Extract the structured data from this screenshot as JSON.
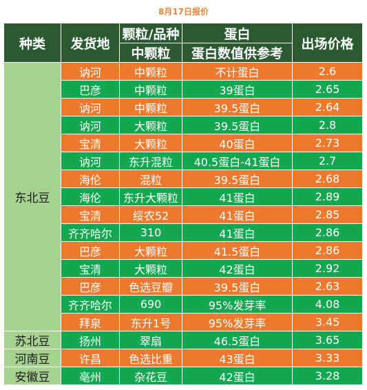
{
  "title": "8月17日报价",
  "headers": {
    "type": "种类",
    "origin": "发货地",
    "grain_variety": "颗粒/品种",
    "grain_sub": "中颗粒",
    "protein": "蛋白",
    "protein_sub": "蛋白数值供参考",
    "price": "出场价格"
  },
  "groups": [
    {
      "category": "东北豆",
      "rows": [
        {
          "origin": "讷河",
          "variety": "中颗粒",
          "protein": "不计蛋白",
          "price": "2.6",
          "color": "orange"
        },
        {
          "origin": "巴彦",
          "variety": "中颗粒",
          "protein": "39蛋白",
          "price": "2.65",
          "color": "green"
        },
        {
          "origin": "讷河",
          "variety": "中颗粒",
          "protein": "39.5蛋白",
          "price": "2.64",
          "color": "orange"
        },
        {
          "origin": "讷河",
          "variety": "大颗粒",
          "protein": "39.5蛋白",
          "price": "2.8",
          "color": "green"
        },
        {
          "origin": "宝清",
          "variety": "大颗粒",
          "protein": "40蛋白",
          "price": "2.73",
          "color": "orange"
        },
        {
          "origin": "讷河",
          "variety": "东升混粒",
          "protein": "40.5蛋白-41蛋白",
          "price": "2.7",
          "color": "green"
        },
        {
          "origin": "海伦",
          "variety": "混粒",
          "protein": "39.5蛋白",
          "price": "2.68",
          "color": "orange"
        },
        {
          "origin": "海伦",
          "variety": "东升大颗粒",
          "protein": "41蛋白",
          "price": "2.89",
          "color": "green"
        },
        {
          "origin": "宝清",
          "variety": "绥农52",
          "protein": "41蛋白",
          "price": "2.85",
          "color": "orange"
        },
        {
          "origin": "齐齐哈尔",
          "variety": "310",
          "protein": "41蛋白",
          "price": "2.86",
          "color": "green"
        },
        {
          "origin": "巴彦",
          "variety": "大颗粒",
          "protein": "41.5蛋白",
          "price": "2.86",
          "color": "orange"
        },
        {
          "origin": "宝清",
          "variety": "大颗粒",
          "protein": "42蛋白",
          "price": "2.92",
          "color": "green"
        },
        {
          "origin": "巴彦",
          "variety": "色选豆瓣",
          "protein": "39.5蛋白",
          "price": "2.63",
          "color": "orange"
        },
        {
          "origin": "齐齐哈尔",
          "variety": "690",
          "protein": "95%发芽率",
          "price": "4.08",
          "color": "green"
        },
        {
          "origin": "拜泉",
          "variety": "东升1号",
          "protein": "95%发芽率",
          "price": "3.45",
          "color": "orange"
        }
      ]
    },
    {
      "category": "苏北豆",
      "rows": [
        {
          "origin": "扬州",
          "variety": "翠扇",
          "protein": "46.5蛋白",
          "price": "3.65",
          "color": "green"
        }
      ]
    },
    {
      "category": "河南豆",
      "rows": [
        {
          "origin": "许昌",
          "variety": "色选比重",
          "protein": "43蛋白",
          "price": "3.33",
          "color": "orange"
        }
      ]
    },
    {
      "category": "安徽豆",
      "rows": [
        {
          "origin": "亳州",
          "variety": "杂花豆",
          "protein": "42蛋白",
          "price": "3.28",
          "color": "green"
        }
      ]
    }
  ]
}
